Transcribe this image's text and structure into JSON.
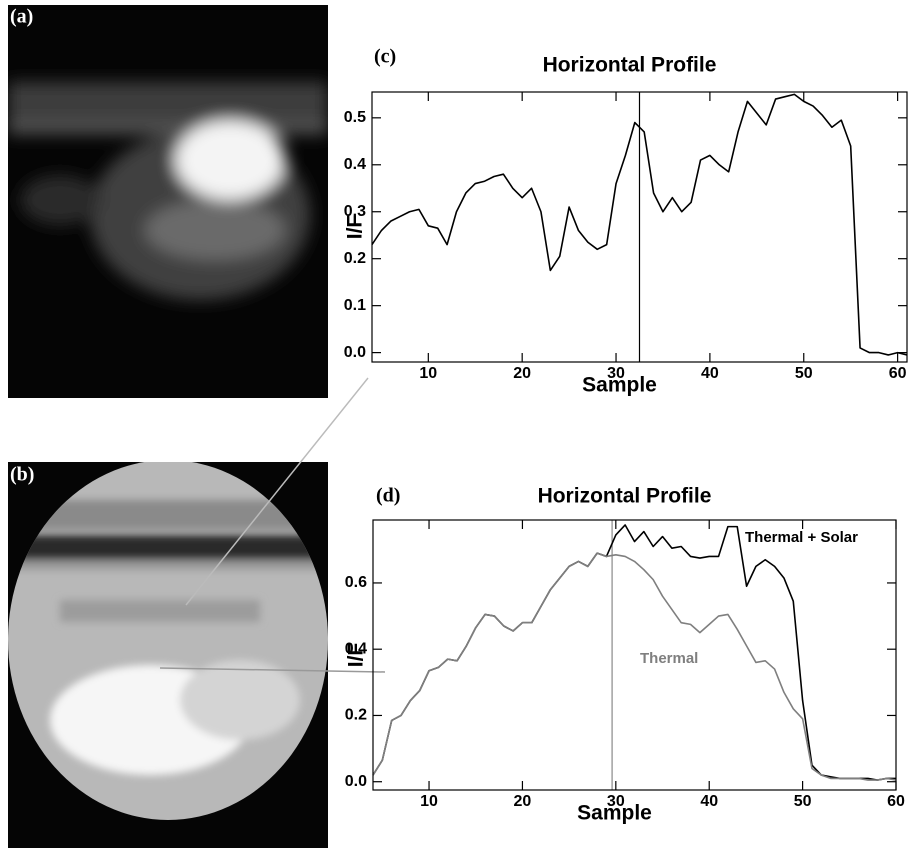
{
  "panels": {
    "a": "(a)",
    "b": "(b)"
  },
  "chart_data": [
    {
      "type": "line",
      "panel_label": "(c)",
      "title": "Horizontal Profile",
      "xlabel": "Sample",
      "ylabel": "I/F",
      "x": [
        4,
        5,
        6,
        7,
        8,
        9,
        10,
        11,
        12,
        13,
        14,
        15,
        16,
        17,
        18,
        19,
        20,
        21,
        22,
        23,
        24,
        25,
        26,
        27,
        28,
        29,
        30,
        31,
        32,
        33,
        34,
        35,
        36,
        37,
        38,
        39,
        40,
        41,
        42,
        43,
        44,
        45,
        46,
        47,
        48,
        49,
        50,
        51,
        52,
        53,
        54,
        55,
        56,
        57,
        58,
        59,
        60,
        61
      ],
      "values": [
        0.23,
        0.26,
        0.28,
        0.29,
        0.3,
        0.305,
        0.27,
        0.265,
        0.23,
        0.3,
        0.34,
        0.36,
        0.365,
        0.375,
        0.38,
        0.35,
        0.33,
        0.35,
        0.3,
        0.175,
        0.205,
        0.31,
        0.26,
        0.235,
        0.22,
        0.23,
        0.36,
        0.42,
        0.49,
        0.47,
        0.34,
        0.3,
        0.33,
        0.3,
        0.32,
        0.41,
        0.42,
        0.4,
        0.385,
        0.47,
        0.535,
        0.51,
        0.485,
        0.54,
        0.545,
        0.55,
        0.535,
        0.525,
        0.505,
        0.48,
        0.495,
        0.44,
        0.01,
        0.0,
        0.0,
        -0.005,
        0.0,
        -0.005
      ],
      "color": "#000000",
      "marker_x": 32.5,
      "xlim": [
        4,
        61
      ],
      "xticks": [
        10,
        20,
        30,
        40,
        50,
        60
      ],
      "ylim": [
        -0.02,
        0.555
      ],
      "yticks": [
        {
          "value": 0,
          "label": "0.0"
        },
        0.1,
        0.2,
        0.3,
        0.4,
        0.5
      ]
    },
    {
      "type": "line",
      "panel_label": "(d)",
      "title": "Horizontal Profile",
      "xlabel": "Sample",
      "ylabel": "I/F",
      "x": [
        4,
        5,
        6,
        7,
        8,
        9,
        10,
        11,
        12,
        13,
        14,
        15,
        16,
        17,
        18,
        19,
        20,
        21,
        22,
        23,
        24,
        25,
        26,
        27,
        28,
        29,
        30,
        31,
        32,
        33,
        34,
        35,
        36,
        37,
        38,
        39,
        40,
        41,
        42,
        43,
        44,
        45,
        46,
        47,
        48,
        49,
        50,
        51,
        52,
        53,
        54,
        55,
        56,
        57,
        58,
        59,
        60
      ],
      "series": [
        {
          "name": "Thermal + Solar",
          "color": "#000000",
          "values": [
            0.02,
            0.065,
            0.185,
            0.2,
            0.245,
            0.275,
            0.335,
            0.345,
            0.37,
            0.365,
            0.41,
            0.465,
            0.505,
            0.5,
            0.47,
            0.455,
            0.48,
            0.48,
            0.53,
            0.58,
            0.615,
            0.65,
            0.665,
            0.65,
            0.69,
            0.68,
            0.745,
            0.775,
            0.725,
            0.755,
            0.71,
            0.74,
            0.705,
            0.71,
            0.68,
            0.675,
            0.68,
            0.68,
            0.77,
            0.77,
            0.59,
            0.65,
            0.67,
            0.65,
            0.615,
            0.545,
            0.245,
            0.05,
            0.02,
            0.015,
            0.01,
            0.01,
            0.01,
            0.01,
            0.005,
            0.01,
            0.01
          ]
        },
        {
          "name": "Thermal",
          "color": "#7f7f7f",
          "values": [
            0.02,
            0.065,
            0.185,
            0.2,
            0.245,
            0.275,
            0.335,
            0.345,
            0.37,
            0.365,
            0.41,
            0.465,
            0.505,
            0.5,
            0.47,
            0.455,
            0.48,
            0.48,
            0.53,
            0.58,
            0.615,
            0.65,
            0.665,
            0.65,
            0.69,
            0.68,
            0.685,
            0.68,
            0.665,
            0.64,
            0.61,
            0.56,
            0.52,
            0.48,
            0.475,
            0.45,
            0.475,
            0.5,
            0.505,
            0.46,
            0.41,
            0.36,
            0.365,
            0.34,
            0.27,
            0.22,
            0.19,
            0.04,
            0.02,
            0.01,
            0.01,
            0.01,
            0.01,
            0.005,
            0.005,
            0.01,
            0.005
          ]
        }
      ],
      "marker_x": 29.6,
      "xlim": [
        4,
        60
      ],
      "xticks": [
        10,
        20,
        30,
        40,
        50,
        60
      ],
      "ylim": [
        -0.025,
        0.79
      ],
      "yticks": [
        {
          "value": 0,
          "label": "0.0"
        },
        0.2,
        0.4,
        0.6
      ]
    }
  ]
}
